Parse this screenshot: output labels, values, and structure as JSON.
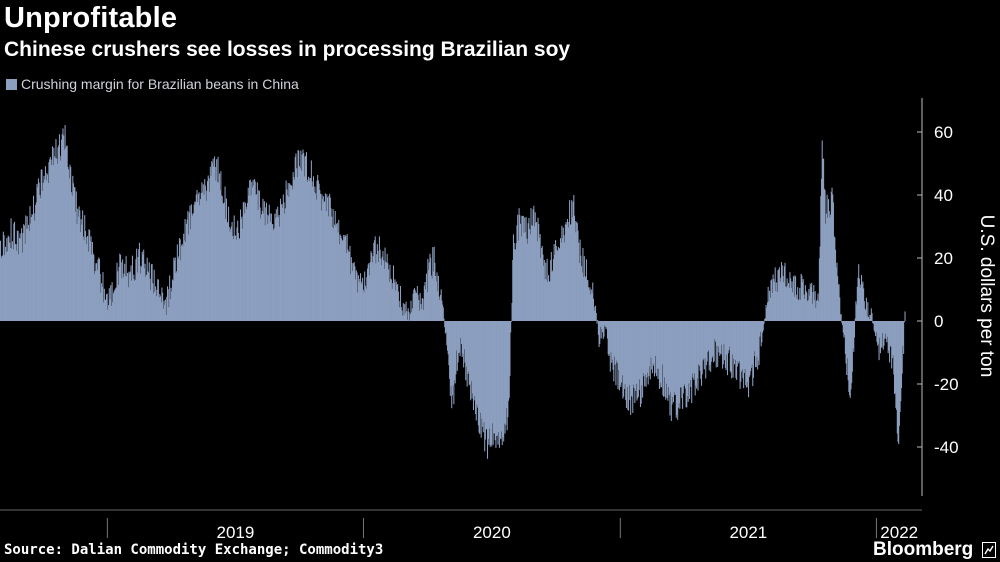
{
  "header": {
    "title": "Unprofitable",
    "subtitle": "Chinese crushers see losses in processing Brazilian soy"
  },
  "legend": {
    "label": "Crushing margin for Brazilian beans in China",
    "color": "#8c9fbf"
  },
  "footer": {
    "source": "Source: Dalian Commodity Exchange; Commodity3",
    "brand": "Bloomberg",
    "brand_icon": "bloomberg-terminal-icon"
  },
  "chart_data": {
    "type": "area",
    "title": "Unprofitable",
    "subtitle": "Chinese crushers see losses in processing Brazilian soy",
    "series": [
      {
        "name": "Crushing margin for Brazilian beans in China",
        "color": "#8c9fbf",
        "points": [
          [
            "2018-08-01",
            22
          ],
          [
            "2018-08-15",
            28
          ],
          [
            "2018-09-01",
            25
          ],
          [
            "2018-09-15",
            35
          ],
          [
            "2018-10-01",
            45
          ],
          [
            "2018-10-15",
            52
          ],
          [
            "2018-11-01",
            58
          ],
          [
            "2018-11-10",
            45
          ],
          [
            "2018-11-20",
            33
          ],
          [
            "2018-12-01",
            28
          ],
          [
            "2018-12-10",
            22
          ],
          [
            "2018-12-20",
            15
          ],
          [
            "2019-01-01",
            5
          ],
          [
            "2019-01-10",
            12
          ],
          [
            "2019-01-20",
            18
          ],
          [
            "2019-02-01",
            15
          ],
          [
            "2019-02-15",
            20
          ],
          [
            "2019-03-01",
            15
          ],
          [
            "2019-03-15",
            10
          ],
          [
            "2019-03-25",
            5
          ],
          [
            "2019-04-01",
            12
          ],
          [
            "2019-04-20",
            28
          ],
          [
            "2019-05-10",
            38
          ],
          [
            "2019-05-25",
            45
          ],
          [
            "2019-06-05",
            50
          ],
          [
            "2019-06-15",
            40
          ],
          [
            "2019-06-25",
            30
          ],
          [
            "2019-07-05",
            28
          ],
          [
            "2019-07-15",
            35
          ],
          [
            "2019-07-25",
            42
          ],
          [
            "2019-08-05",
            38
          ],
          [
            "2019-08-15",
            34
          ],
          [
            "2019-08-25",
            30
          ],
          [
            "2019-09-05",
            35
          ],
          [
            "2019-09-20",
            45
          ],
          [
            "2019-10-01",
            52
          ],
          [
            "2019-10-10",
            50
          ],
          [
            "2019-10-20",
            45
          ],
          [
            "2019-11-01",
            40
          ],
          [
            "2019-11-15",
            35
          ],
          [
            "2019-11-25",
            30
          ],
          [
            "2019-12-05",
            25
          ],
          [
            "2019-12-15",
            18
          ],
          [
            "2019-12-25",
            12
          ],
          [
            "2020-01-05",
            15
          ],
          [
            "2020-01-20",
            24
          ],
          [
            "2020-02-01",
            20
          ],
          [
            "2020-02-15",
            12
          ],
          [
            "2020-02-25",
            5
          ],
          [
            "2020-03-05",
            2
          ],
          [
            "2020-03-15",
            8
          ],
          [
            "2020-03-25",
            4
          ],
          [
            "2020-04-01",
            15
          ],
          [
            "2020-04-10",
            20
          ],
          [
            "2020-04-20",
            8
          ],
          [
            "2020-05-01",
            -12
          ],
          [
            "2020-05-05",
            -28
          ],
          [
            "2020-05-15",
            -8
          ],
          [
            "2020-05-25",
            -15
          ],
          [
            "2020-06-05",
            -25
          ],
          [
            "2020-06-15",
            -32
          ],
          [
            "2020-06-25",
            -40
          ],
          [
            "2020-07-05",
            -35
          ],
          [
            "2020-07-15",
            -38
          ],
          [
            "2020-07-25",
            -30
          ],
          [
            "2020-08-01",
            25
          ],
          [
            "2020-08-10",
            32
          ],
          [
            "2020-08-20",
            28
          ],
          [
            "2020-09-01",
            35
          ],
          [
            "2020-09-10",
            20
          ],
          [
            "2020-09-20",
            15
          ],
          [
            "2020-10-01",
            22
          ],
          [
            "2020-10-15",
            30
          ],
          [
            "2020-10-25",
            37
          ],
          [
            "2020-11-05",
            20
          ],
          [
            "2020-11-15",
            15
          ],
          [
            "2020-11-25",
            5
          ],
          [
            "2020-12-01",
            -5
          ],
          [
            "2020-12-10",
            -2
          ],
          [
            "2020-12-20",
            -15
          ],
          [
            "2021-01-01",
            -20
          ],
          [
            "2021-01-15",
            -25
          ],
          [
            "2021-02-01",
            -22
          ],
          [
            "2021-02-15",
            -15
          ],
          [
            "2021-03-01",
            -18
          ],
          [
            "2021-03-15",
            -28
          ],
          [
            "2021-04-01",
            -25
          ],
          [
            "2021-04-15",
            -20
          ],
          [
            "2021-05-01",
            -15
          ],
          [
            "2021-05-15",
            -10
          ],
          [
            "2021-06-01",
            -12
          ],
          [
            "2021-06-15",
            -15
          ],
          [
            "2021-07-01",
            -20
          ],
          [
            "2021-07-15",
            -12
          ],
          [
            "2021-08-01",
            10
          ],
          [
            "2021-08-15",
            15
          ],
          [
            "2021-09-01",
            12
          ],
          [
            "2021-09-15",
            10
          ],
          [
            "2021-10-01",
            8
          ],
          [
            "2021-10-10",
            5
          ],
          [
            "2021-10-15",
            60
          ],
          [
            "2021-10-20",
            35
          ],
          [
            "2021-10-30",
            38
          ],
          [
            "2021-11-05",
            15
          ],
          [
            "2021-11-15",
            -5
          ],
          [
            "2021-11-25",
            -25
          ],
          [
            "2021-12-05",
            18
          ],
          [
            "2021-12-15",
            5
          ],
          [
            "2021-12-25",
            2
          ],
          [
            "2022-01-05",
            -10
          ],
          [
            "2022-01-15",
            -5
          ],
          [
            "2022-01-25",
            -15
          ],
          [
            "2022-02-01",
            -40
          ],
          [
            "2022-02-10",
            3
          ]
        ]
      }
    ],
    "x_tick_labels": [
      "2019",
      "2020",
      "2021",
      "2022"
    ],
    "y_ticks": [
      60,
      40,
      20,
      0,
      -20,
      -40
    ],
    "y_tick_labels": [
      "60",
      "40",
      "20",
      "0",
      "-20",
      "-40"
    ],
    "ylabel": "U.S. dollars per ton",
    "ylim": [
      -55,
      70
    ],
    "xlim": [
      "2018-08-01",
      "2022-02-15"
    ],
    "y_axis_side": "right",
    "grid": false
  }
}
